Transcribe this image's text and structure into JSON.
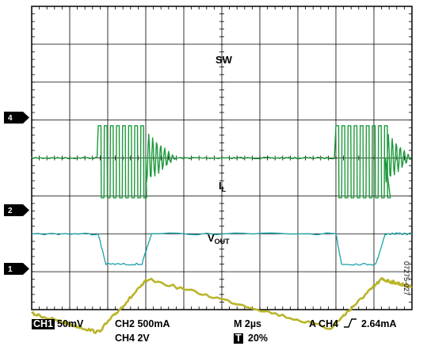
{
  "labels": {
    "sw": "SW",
    "il_main": "I",
    "il_sub": "L",
    "vout_main": "V",
    "vout_sub": "OUT"
  },
  "markers": {
    "ch4": "4",
    "ch2": "2",
    "ch1": "1"
  },
  "readout": {
    "ch1_box": "CH1",
    "ch1": "50mV",
    "ch2": "CH2  500mA",
    "ch4": "CH4 2V",
    "time": "M 2µs",
    "trig_box": "T",
    "trig_pos": "20%",
    "trigger_left": "A  CH4",
    "trigger_right": "2.64mA"
  },
  "figure_code": "07275-027",
  "colors": {
    "sw": "#1e9a3c",
    "il": "#1aa3a8",
    "vout": "#b9b52a",
    "grid": "#000000"
  },
  "chart_data": {
    "type": "line",
    "grid": true,
    "x_divisions": 10,
    "y_divisions": 8,
    "x_unit": "2µs/div",
    "series": [
      {
        "name": "SW",
        "points": [
          [
            0,
            4.0
          ],
          [
            1.75,
            4.0
          ],
          [
            1.75,
            4.0
          ],
          [
            3.0,
            4.0
          ],
          [
            3.1,
            4.0
          ],
          [
            4.0,
            4.0
          ],
          [
            8.0,
            4.0
          ],
          [
            8.15,
            4.0
          ],
          [
            9.3,
            4.0
          ],
          [
            10,
            4.0
          ]
        ],
        "burst_start": [
          1.75,
          8.0
        ],
        "burst_end": [
          3.0,
          9.3
        ]
      },
      {
        "name": "IL",
        "points": [
          [
            0,
            6.0
          ],
          [
            1.75,
            6.0
          ],
          [
            1.95,
            6.8
          ],
          [
            2.9,
            6.8
          ],
          [
            3.15,
            6.0
          ],
          [
            8.0,
            6.0
          ],
          [
            8.15,
            6.8
          ],
          [
            9.05,
            6.8
          ],
          [
            9.3,
            6.0
          ],
          [
            10,
            6.0
          ]
        ]
      },
      {
        "name": "VOUT",
        "points": [
          [
            0,
            8.1
          ],
          [
            1.75,
            8.6
          ],
          [
            3.05,
            7.2
          ],
          [
            7.85,
            8.5
          ],
          [
            9.2,
            7.2
          ],
          [
            10,
            7.4
          ]
        ]
      }
    ]
  }
}
